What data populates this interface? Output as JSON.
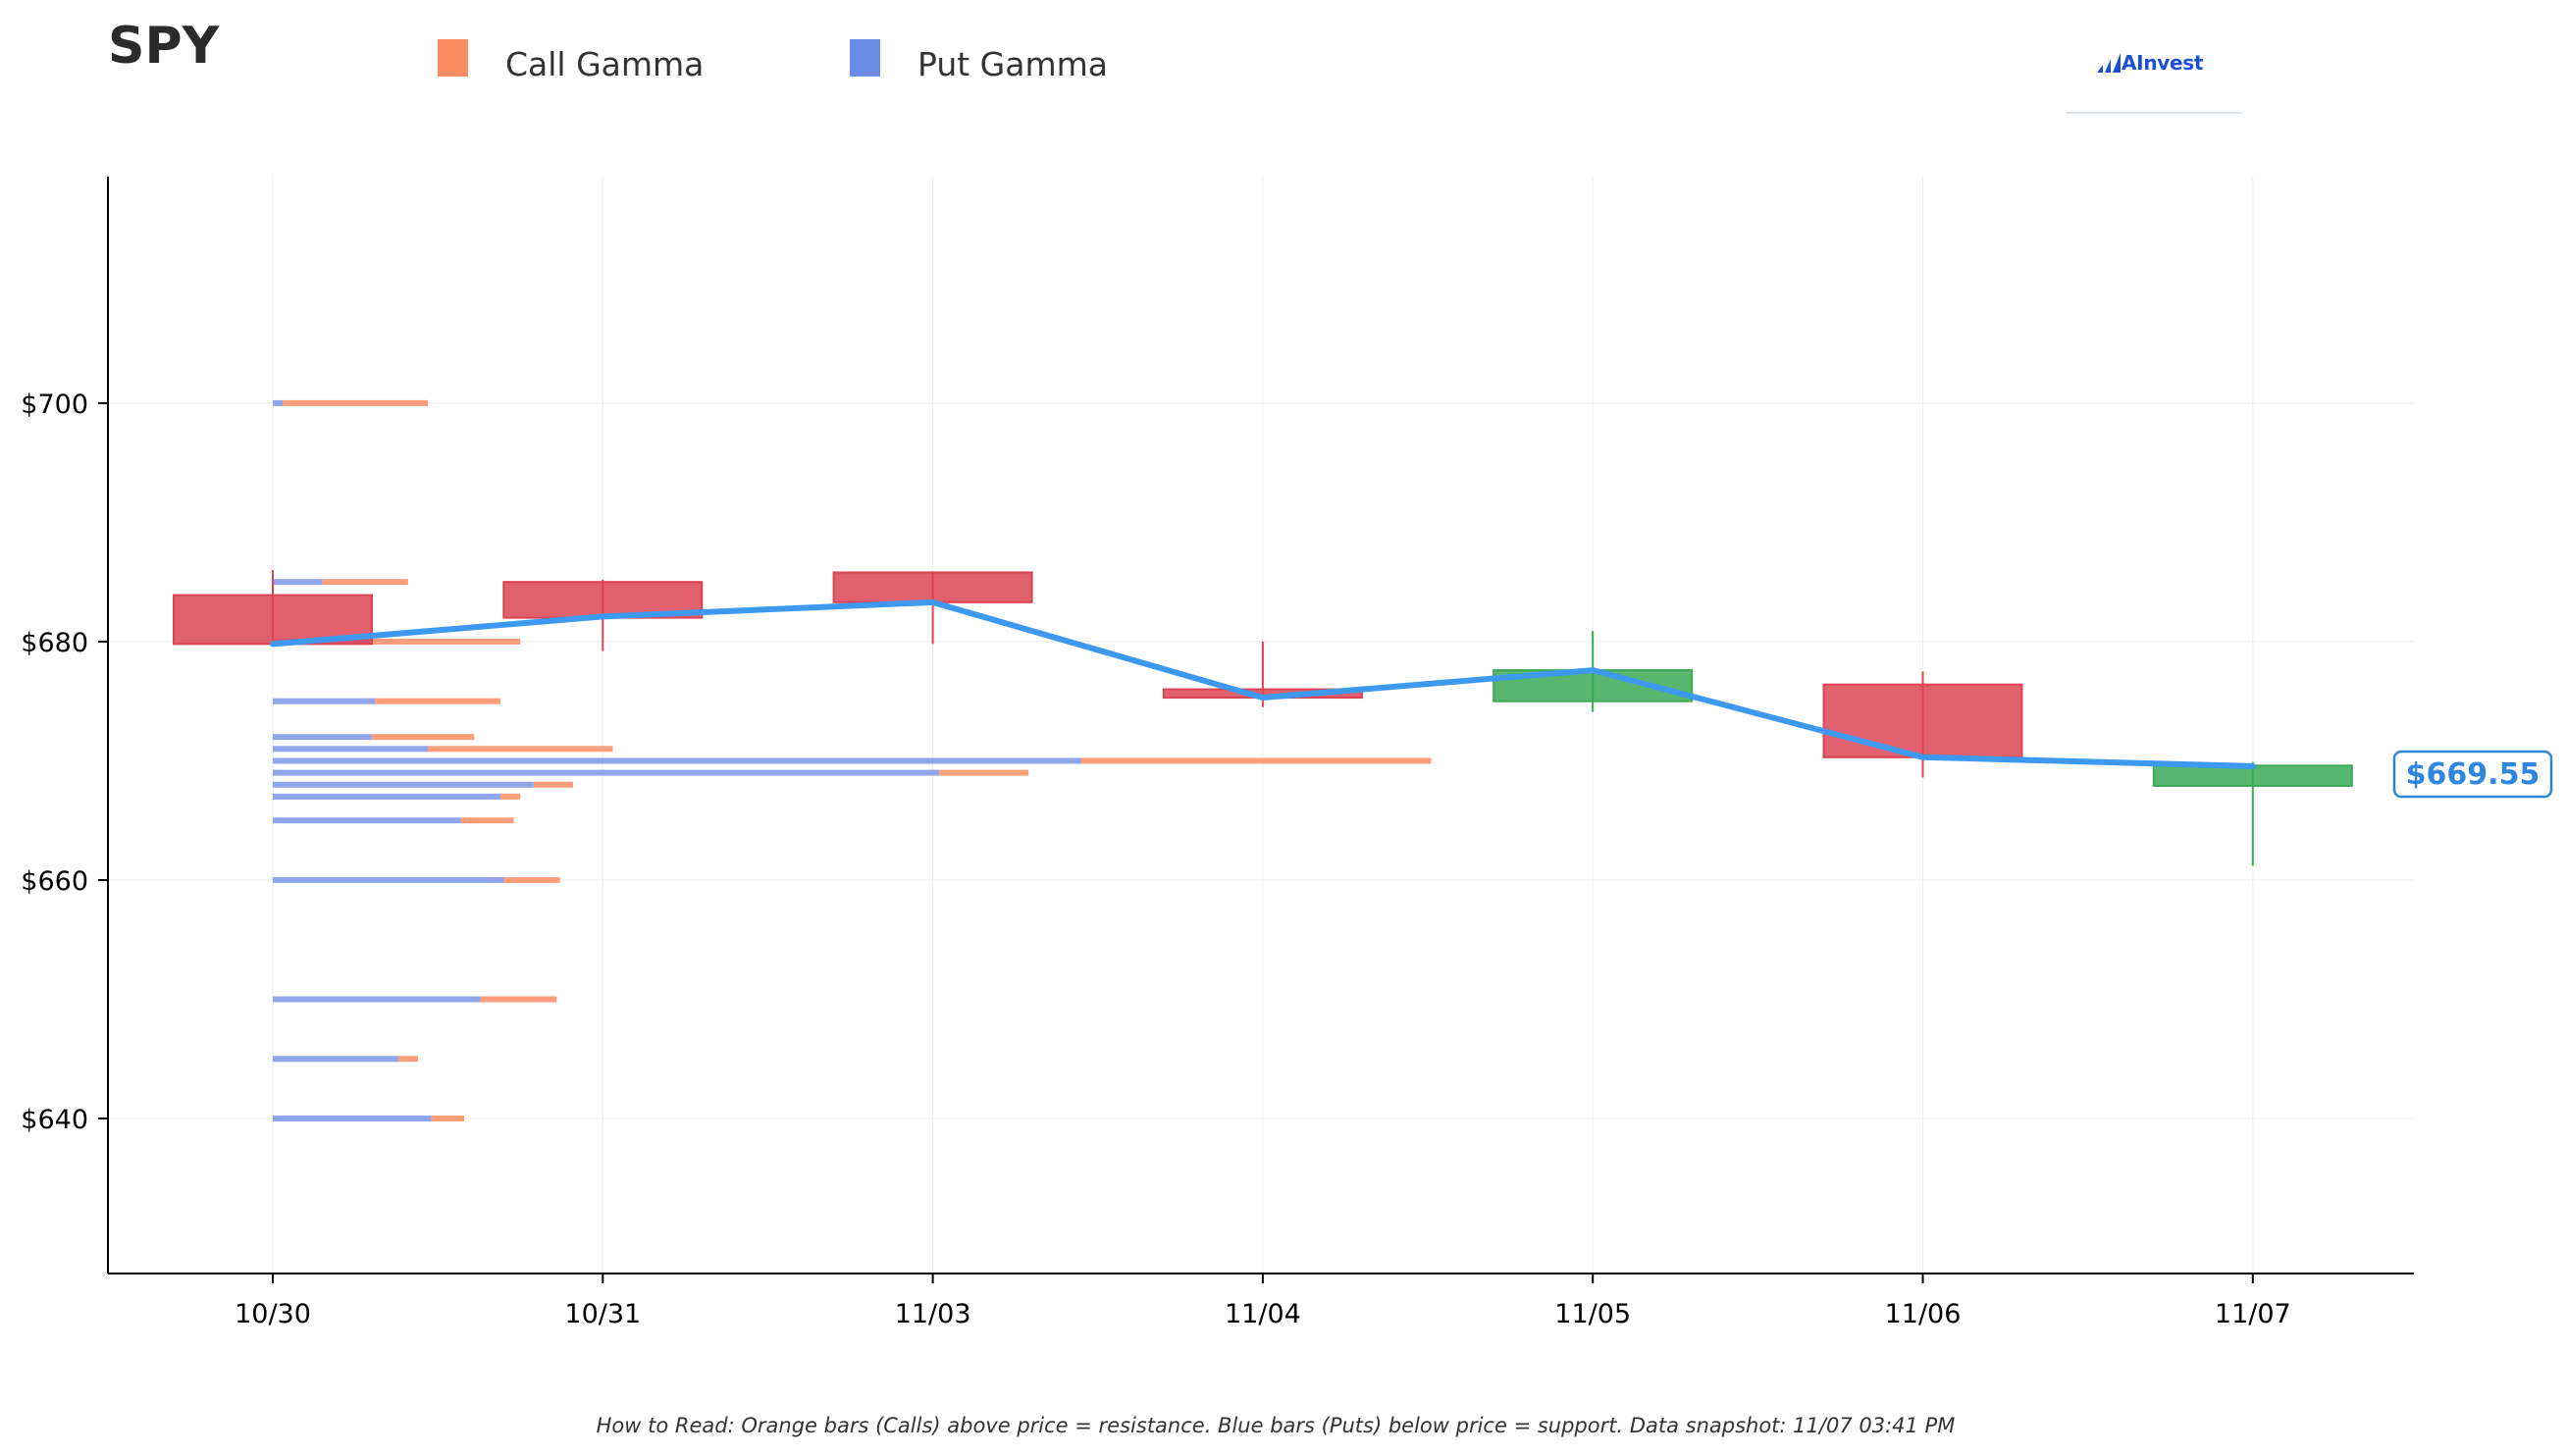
{
  "title": "SPY",
  "legend": [
    {
      "label": "Call Gamma",
      "color": "#fc8d62"
    },
    {
      "label": "Put Gamma",
      "color": "#6a8be6"
    }
  ],
  "brand": {
    "name": "AInvest",
    "icon": "ainvest-logo-icon"
  },
  "footer_note": "How to Read: Orange bars (Calls) above price = resistance. Blue bars (Puts) below price = support. Data snapshot: 11/07 03:41 PM",
  "current_price_label": "$669.55",
  "colors": {
    "up": "#3aaa55",
    "down": "#dc4454",
    "price_line": "#3d99f0",
    "call": "#fc8d62",
    "put": "#7b97e8",
    "axis": "#000000",
    "grid": "#ececec"
  },
  "chart_data": {
    "type": "candlestick",
    "title": "SPY",
    "categories": [
      "10/30",
      "10/31",
      "11/03",
      "11/04",
      "11/05",
      "11/06",
      "11/07"
    ],
    "ylim": [
      627,
      719
    ],
    "yticks": [
      640,
      660,
      680,
      700
    ],
    "ytick_labels": [
      "$640",
      "$660",
      "$680",
      "$700"
    ],
    "grid": true,
    "candles": [
      {
        "date": "10/30",
        "open": 683.9,
        "high": 686.0,
        "low": 679.7,
        "close": 679.8
      },
      {
        "date": "10/31",
        "open": 685.0,
        "high": 685.2,
        "low": 679.2,
        "close": 682.0
      },
      {
        "date": "11/03",
        "open": 685.8,
        "high": 685.9,
        "low": 679.8,
        "close": 683.3
      },
      {
        "date": "11/04",
        "open": 676.0,
        "high": 680.0,
        "low": 674.5,
        "close": 675.3
      },
      {
        "date": "11/05",
        "open": 675.0,
        "high": 680.9,
        "low": 674.1,
        "close": 677.6
      },
      {
        "date": "11/06",
        "open": 676.4,
        "high": 677.5,
        "low": 668.6,
        "close": 670.3
      },
      {
        "date": "11/07",
        "open": 667.9,
        "high": 669.9,
        "low": 661.2,
        "close": 669.6
      }
    ],
    "price_line": [
      {
        "date": "10/30",
        "value": 679.8
      },
      {
        "date": "10/31",
        "value": 682.1
      },
      {
        "date": "11/03",
        "value": 683.3
      },
      {
        "date": "11/04",
        "value": 675.3
      },
      {
        "date": "11/05",
        "value": 677.6
      },
      {
        "date": "11/06",
        "value": 670.3
      },
      {
        "date": "11/07",
        "value": 669.55
      }
    ],
    "gamma_levels": [
      {
        "strike": 700,
        "put": 0.03,
        "call": 0.44
      },
      {
        "strike": 685,
        "put": 0.15,
        "call": 0.26
      },
      {
        "strike": 680,
        "put": 0.3,
        "call": 0.45
      },
      {
        "strike": 675,
        "put": 0.31,
        "call": 0.38
      },
      {
        "strike": 672,
        "put": 0.3,
        "call": 0.31
      },
      {
        "strike": 671,
        "put": 0.47,
        "call": 0.56
      },
      {
        "strike": 670,
        "put": 2.45,
        "call": 1.06
      },
      {
        "strike": 669,
        "put": 2.02,
        "call": 0.27
      },
      {
        "strike": 668,
        "put": 0.79,
        "call": 0.12
      },
      {
        "strike": 667,
        "put": 0.69,
        "call": 0.06
      },
      {
        "strike": 665,
        "put": 0.57,
        "call": 0.16
      },
      {
        "strike": 660,
        "put": 0.7,
        "call": 0.17
      },
      {
        "strike": 650,
        "put": 0.63,
        "call": 0.23
      },
      {
        "strike": 645,
        "put": 0.38,
        "call": 0.06
      },
      {
        "strike": 640,
        "put": 0.48,
        "call": 0.1
      }
    ],
    "legend_position": "top"
  }
}
